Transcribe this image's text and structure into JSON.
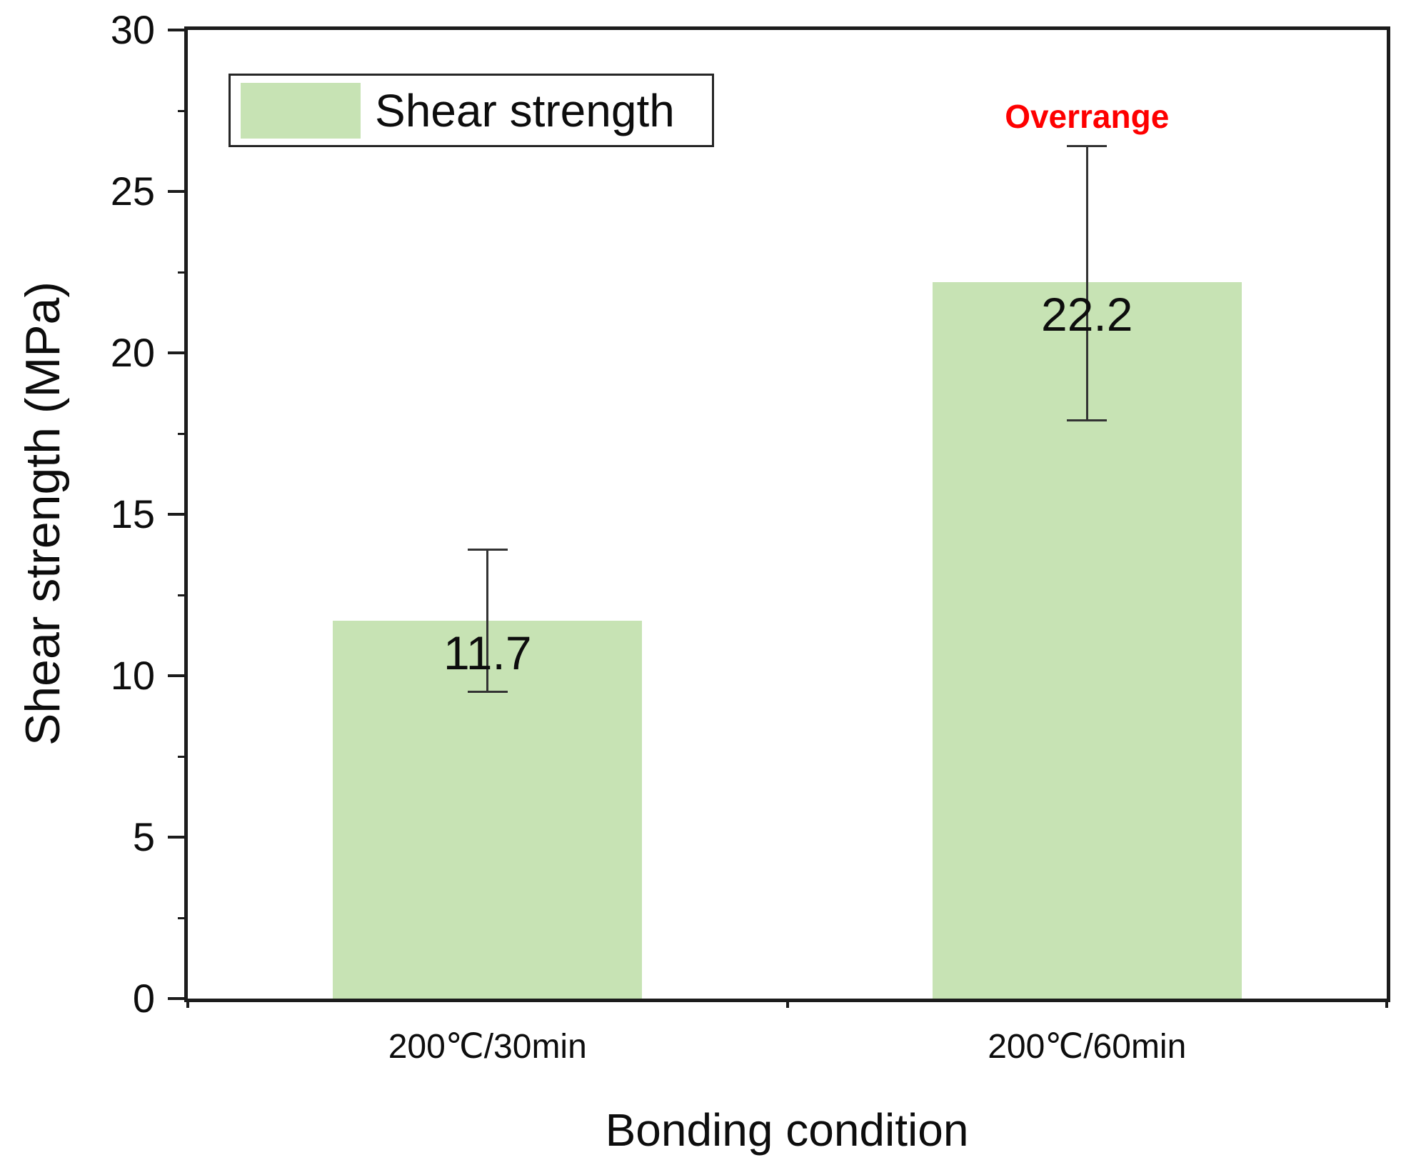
{
  "figure": {
    "background": "#ffffff"
  },
  "legend": {
    "label": "Shear strength"
  },
  "axes": {
    "y_title": "Shear strength (MPa)",
    "x_title": "Bonding condition"
  },
  "colors": {
    "bar_fill": "#c7e3b4",
    "error_bar": "#333333",
    "frame": "#1c1c1c",
    "annotation_red": "#fe0000",
    "text": "#0d0d0d"
  },
  "chart_data": {
    "type": "bar",
    "title": "",
    "xlabel": "Bonding condition",
    "ylabel": "Shear strength (MPa)",
    "categories": [
      "200℃/30min",
      "200℃/60min"
    ],
    "series": [
      {
        "name": "Shear strength",
        "values": [
          11.7,
          22.2
        ],
        "error_plus": [
          2.2,
          4.2
        ],
        "error_minus": [
          2.2,
          4.3
        ]
      }
    ],
    "value_labels": [
      "11.7",
      "22.2"
    ],
    "annotations": [
      {
        "text": "Overrange",
        "category_index": 1,
        "color": "#fe0000",
        "placement": "above_error_bar"
      }
    ],
    "ylim": [
      0,
      30
    ],
    "y_major_tick_step": 5,
    "y_minor_tick_step": 2.5,
    "y_major_tick_labels": [
      "0",
      "5",
      "10",
      "15",
      "20",
      "25",
      "30"
    ],
    "grid": false,
    "legend_position": "top-left",
    "bar_fill": "#c7e3b4"
  }
}
